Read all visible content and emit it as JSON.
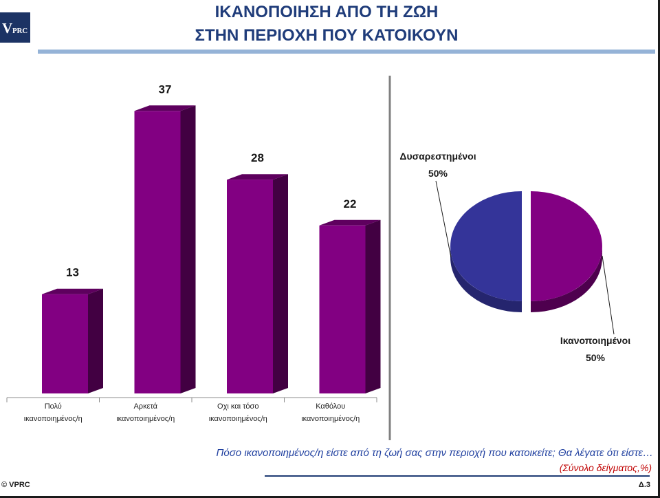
{
  "logo": {
    "text": "VPRC"
  },
  "title": {
    "line1": "ΙΚΑΝΟΠΟΙΗΣΗ ΑΠΟ ΤΗ ΖΩΗ",
    "line2": "ΣΤΗΝ ΠΕΡΙΟΧΗ ΠΟΥ ΚΑΤΟΙΚΟΥΝ"
  },
  "colors": {
    "title": "#1f3c7a",
    "logo_bg": "#1c3364",
    "rule": "#95b3d7",
    "bar_front": "#820082",
    "bar_top": "#5e005e",
    "bar_side": "#420042",
    "question": "#1f3f9f",
    "note": "#c00000",
    "footer_rule": "#1f3b73",
    "divider": "#808080"
  },
  "chart_data": [
    {
      "type": "bar",
      "title": "",
      "categories": [
        "Πολύ ικανοποιημένος/η",
        "Αρκετά ικανοποιημένος/η",
        "Οχι και τόσο ικανοποιημένος/η",
        "Καθόλου ικανοποιημένος/η"
      ],
      "values": [
        13,
        37,
        28,
        22
      ],
      "data_labels": true,
      "xlabel": "",
      "ylabel": "",
      "ylim": [
        0,
        40
      ],
      "grid": false
    },
    {
      "type": "pie",
      "title": "",
      "slices": [
        {
          "label": "Ικανοποιημένοι",
          "value": 50,
          "exploded": true,
          "color": "#820082",
          "side_color": "#4e004e"
        },
        {
          "label": "Δυσαρεστημένοι",
          "value": 50,
          "exploded": false,
          "color": "#343499",
          "side_color": "#25256e"
        }
      ],
      "value_suffix": "%"
    }
  ],
  "question": "Πόσο ικανοποιημένος/η είστε από τη ζωή σας στην περιοχή που κατοικείτε; Θα λέγατε ότι είστε…",
  "sample_note": "(Σύνολο δείγματος,%)",
  "footer": {
    "copyright": "© VPRC",
    "page": "Δ.3"
  }
}
